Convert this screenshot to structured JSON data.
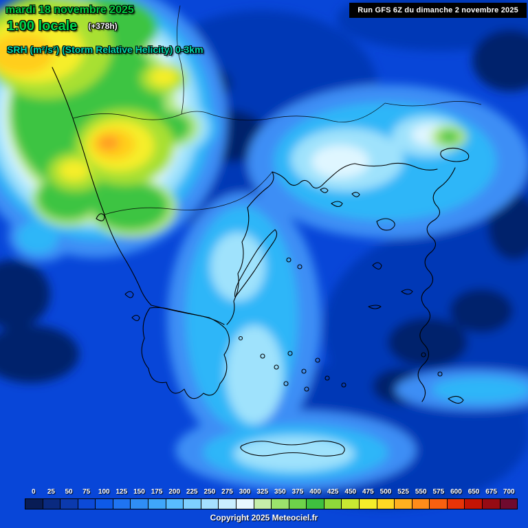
{
  "header": {
    "date": "mardi 18 novembre 2025",
    "time": "1:00 locale",
    "forecast_offset": "(+378h)",
    "parameter": "SRH (m²/s²) (Storm Relative Helicity) 0-3km",
    "run_info": "Run GFS 6Z du dimanche 2 novembre 2025"
  },
  "legend": {
    "tick_labels": [
      "0",
      "25",
      "50",
      "75",
      "100",
      "125",
      "150",
      "175",
      "200",
      "225",
      "250",
      "275",
      "300",
      "325",
      "350",
      "375",
      "400",
      "425",
      "450",
      "475",
      "500",
      "525",
      "550",
      "575",
      "600",
      "650",
      "675",
      "700"
    ],
    "cell_colors": [
      "#081c55",
      "#0a2a80",
      "#0b3aae",
      "#0c4ad8",
      "#0e5ae8",
      "#1f74f2",
      "#2f8ef6",
      "#3fa6fa",
      "#58bcff",
      "#7ed0ff",
      "#a6e0ff",
      "#c9eeff",
      "#e8f8ff",
      "#c6eeaa",
      "#9ce26c",
      "#6ed24a",
      "#3fc03f",
      "#8ed83a",
      "#c8e832",
      "#f4ee2a",
      "#ffd824",
      "#ffb020",
      "#ff8c1a",
      "#f86010",
      "#e83408",
      "#c41404",
      "#970b14",
      "#6f0a2e"
    ]
  },
  "footer": {
    "copyright": "Copyright 2025 Meteociel.fr"
  },
  "colors": {
    "map_base": "#0846d8",
    "date_text": "#00cf3f",
    "time_text": "#00d84e",
    "offset_text": "#ffffff",
    "param_text": "#00d9ad",
    "run_box_bg": "#000000",
    "run_box_text": "#ffffff",
    "legend_text": "#ffffff",
    "copyright_text": "#ffffff"
  }
}
